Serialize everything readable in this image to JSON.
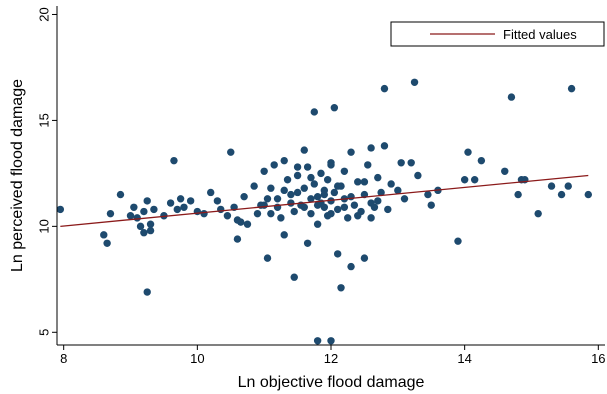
{
  "chart_data": {
    "type": "scatter",
    "title": "",
    "xlabel": "Ln objective flood damage",
    "ylabel": "Ln perceived flood damage",
    "xlim": [
      7.9,
      16.1
    ],
    "ylim": [
      4.4,
      20.4
    ],
    "xticks": [
      8,
      10,
      12,
      14,
      16
    ],
    "yticks": [
      5,
      10,
      15,
      20
    ],
    "grid": false,
    "legend": {
      "position": "top-right",
      "entries": [
        "Fitted values"
      ]
    },
    "colors": {
      "points": "#1e4a6e",
      "fit_line": "#8b1a1a"
    },
    "series": [
      {
        "type": "scatter",
        "points": [
          [
            7.95,
            10.8
          ],
          [
            8.6,
            9.6
          ],
          [
            8.65,
            9.2
          ],
          [
            8.7,
            10.6
          ],
          [
            8.85,
            11.5
          ],
          [
            9.0,
            10.5
          ],
          [
            9.05,
            10.9
          ],
          [
            9.1,
            10.4
          ],
          [
            9.15,
            10.0
          ],
          [
            9.2,
            10.7
          ],
          [
            9.25,
            11.2
          ],
          [
            9.3,
            10.1
          ],
          [
            9.35,
            10.8
          ],
          [
            9.2,
            9.7
          ],
          [
            9.3,
            9.8
          ],
          [
            9.25,
            6.9
          ],
          [
            9.5,
            10.5
          ],
          [
            9.6,
            11.1
          ],
          [
            9.65,
            13.1
          ],
          [
            9.7,
            10.8
          ],
          [
            9.75,
            11.3
          ],
          [
            9.8,
            10.9
          ],
          [
            9.9,
            11.2
          ],
          [
            10.0,
            10.7
          ],
          [
            10.1,
            10.6
          ],
          [
            10.2,
            11.6
          ],
          [
            10.3,
            11.2
          ],
          [
            10.35,
            10.8
          ],
          [
            10.45,
            10.5
          ],
          [
            10.55,
            10.9
          ],
          [
            10.5,
            13.5
          ],
          [
            10.6,
            10.3
          ],
          [
            10.65,
            10.2
          ],
          [
            10.6,
            9.4
          ],
          [
            10.7,
            11.4
          ],
          [
            10.75,
            10.1
          ],
          [
            10.85,
            11.9
          ],
          [
            10.9,
            10.6
          ],
          [
            10.95,
            11.0
          ],
          [
            11.0,
            12.6
          ],
          [
            11.05,
            11.3
          ],
          [
            11.05,
            8.5
          ],
          [
            11.1,
            11.8
          ],
          [
            11.15,
            12.9
          ],
          [
            11.2,
            10.9
          ],
          [
            11.25,
            10.4
          ],
          [
            11.3,
            13.1
          ],
          [
            11.3,
            9.6
          ],
          [
            11.35,
            12.2
          ],
          [
            11.4,
            11.5
          ],
          [
            11.45,
            7.6
          ],
          [
            11.45,
            10.7
          ],
          [
            11.5,
            12.4
          ],
          [
            11.55,
            11.0
          ],
          [
            11.6,
            11.8
          ],
          [
            11.6,
            13.6
          ],
          [
            11.65,
            12.8
          ],
          [
            11.65,
            9.2
          ],
          [
            11.7,
            11.3
          ],
          [
            11.7,
            10.6
          ],
          [
            11.75,
            12.0
          ],
          [
            11.75,
            15.4
          ],
          [
            11.8,
            11.4
          ],
          [
            11.8,
            10.1
          ],
          [
            11.85,
            12.5
          ],
          [
            11.85,
            11.1
          ],
          [
            11.9,
            10.9
          ],
          [
            11.9,
            11.7
          ],
          [
            11.95,
            12.2
          ],
          [
            11.95,
            10.5
          ],
          [
            12.0,
            11.2
          ],
          [
            12.0,
            13.0
          ],
          [
            12.05,
            11.6
          ],
          [
            12.05,
            15.6
          ],
          [
            12.1,
            10.8
          ],
          [
            12.1,
            8.7
          ],
          [
            12.15,
            7.1
          ],
          [
            12.15,
            11.9
          ],
          [
            12.2,
            12.6
          ],
          [
            12.2,
            11.3
          ],
          [
            12.25,
            10.4
          ],
          [
            12.3,
            8.1
          ],
          [
            12.3,
            13.5
          ],
          [
            12.35,
            11.0
          ],
          [
            12.4,
            12.1
          ],
          [
            12.45,
            10.7
          ],
          [
            12.5,
            11.5
          ],
          [
            12.5,
            8.5
          ],
          [
            12.55,
            12.9
          ],
          [
            12.6,
            13.7
          ],
          [
            12.6,
            11.1
          ],
          [
            12.65,
            10.9
          ],
          [
            12.7,
            12.3
          ],
          [
            12.75,
            11.6
          ],
          [
            12.8,
            13.8
          ],
          [
            12.8,
            16.5
          ],
          [
            12.85,
            10.8
          ],
          [
            12.9,
            12.0
          ],
          [
            13.0,
            11.7
          ],
          [
            13.05,
            13.0
          ],
          [
            13.1,
            11.3
          ],
          [
            13.2,
            13.0
          ],
          [
            13.25,
            16.8
          ],
          [
            13.3,
            12.4
          ],
          [
            13.45,
            11.5
          ],
          [
            13.5,
            11.0
          ],
          [
            13.6,
            11.7
          ],
          [
            13.9,
            9.3
          ],
          [
            14.0,
            12.2
          ],
          [
            14.05,
            13.5
          ],
          [
            14.15,
            12.2
          ],
          [
            14.25,
            13.1
          ],
          [
            14.6,
            12.6
          ],
          [
            14.7,
            16.1
          ],
          [
            14.8,
            11.5
          ],
          [
            14.85,
            12.2
          ],
          [
            14.9,
            12.2
          ],
          [
            15.1,
            10.6
          ],
          [
            15.3,
            11.9
          ],
          [
            15.45,
            11.5
          ],
          [
            15.55,
            11.9
          ],
          [
            15.6,
            16.5
          ],
          [
            15.85,
            11.5
          ],
          [
            11.8,
            4.6
          ],
          [
            12.0,
            4.6
          ],
          [
            11.5,
            11.6
          ],
          [
            11.6,
            10.9
          ],
          [
            11.7,
            12.3
          ],
          [
            11.8,
            11.0
          ],
          [
            11.9,
            11.5
          ],
          [
            12.0,
            10.6
          ],
          [
            12.1,
            11.9
          ],
          [
            12.2,
            10.9
          ],
          [
            12.3,
            11.4
          ],
          [
            12.4,
            10.5
          ],
          [
            11.4,
            11.1
          ],
          [
            11.3,
            11.7
          ],
          [
            11.2,
            11.3
          ],
          [
            11.1,
            10.6
          ],
          [
            11.0,
            11.0
          ],
          [
            12.5,
            12.1
          ],
          [
            12.6,
            10.4
          ],
          [
            12.7,
            11.2
          ],
          [
            11.5,
            12.8
          ],
          [
            12.0,
            12.9
          ]
        ]
      },
      {
        "name": "Fitted values",
        "type": "line",
        "x": [
          7.95,
          15.85
        ],
        "y": [
          10.0,
          12.4
        ]
      }
    ]
  }
}
